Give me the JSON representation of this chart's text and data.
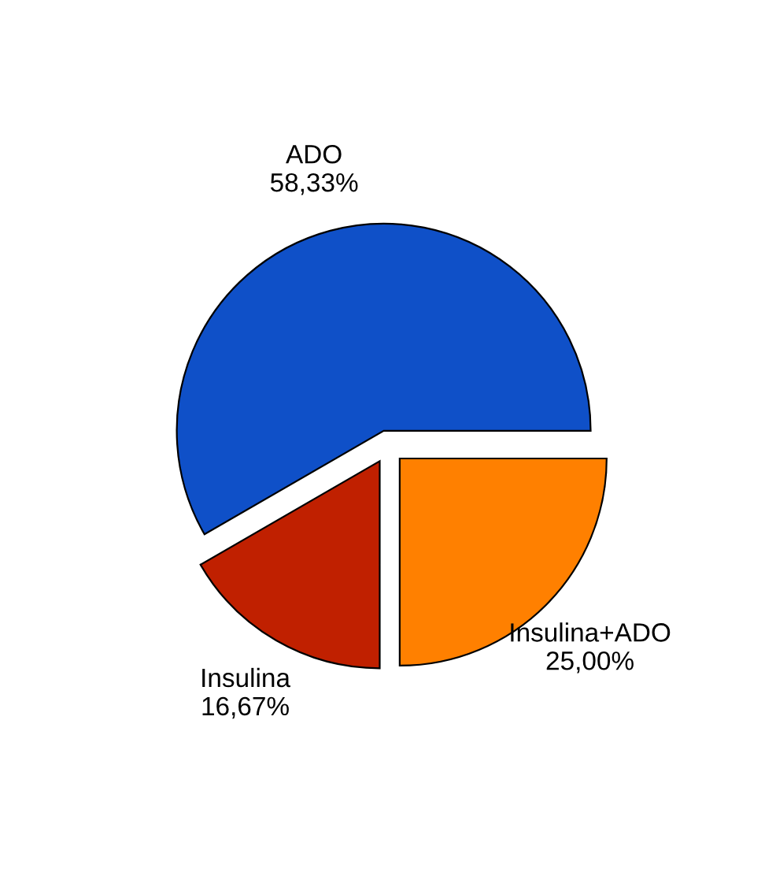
{
  "chart_data": {
    "type": "pie",
    "categories": [
      "ADO",
      "Insulina",
      "Insulina+ADO"
    ],
    "values": [
      58.33,
      16.67,
      25.0
    ],
    "value_labels": [
      "58,33%",
      "16,67%",
      "25,00%"
    ],
    "colors": [
      "#0f50c8",
      "#c02000",
      "#ff8000"
    ],
    "legend": false
  }
}
